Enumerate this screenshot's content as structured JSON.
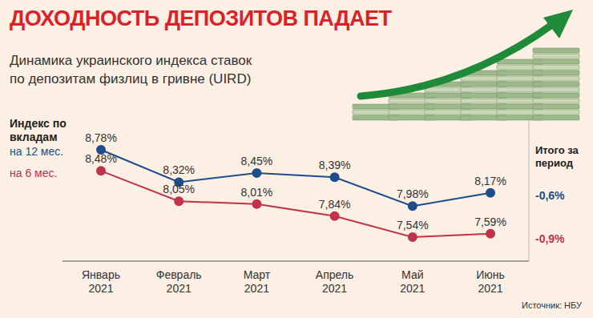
{
  "chart_data": {
    "type": "line",
    "title": "ДОХОДНОСТЬ ДЕПОЗИТОВ ПАДАЕТ",
    "subtitle": "Динамика украинского индекса ставок по депозитам физлиц в гривне (UIRD)",
    "legend_title": "Индекс по вкладам",
    "categories": [
      "Январь 2021",
      "Февраль 2021",
      "Март 2021",
      "Апрель 2021",
      "Май 2021",
      "Июнь 2021"
    ],
    "series": [
      {
        "name": "на 12 мес.",
        "color": "#1e4d8c",
        "values": [
          8.78,
          8.32,
          8.45,
          8.39,
          7.98,
          8.17
        ],
        "value_labels": [
          "8,78%",
          "8,32%",
          "8,45%",
          "8,39%",
          "7,98%",
          "8,17%"
        ],
        "period_change": -0.6,
        "period_change_label": "-0,6%"
      },
      {
        "name": "на 6 мес.",
        "color": "#c0334a",
        "values": [
          8.48,
          8.05,
          8.01,
          7.84,
          7.54,
          7.59
        ],
        "value_labels": [
          "8,48%",
          "8,05%",
          "8,01%",
          "7,84%",
          "7,54%",
          "7,59%"
        ],
        "period_change": -0.9,
        "period_change_label": "-0,9%"
      }
    ],
    "period_change_title": "Итого за период",
    "ylim": [
      7.2,
      9.2
    ],
    "tick_labels": "x",
    "data_labels": true,
    "marker": "circle",
    "grid": false,
    "source": "Источник: НБУ"
  }
}
